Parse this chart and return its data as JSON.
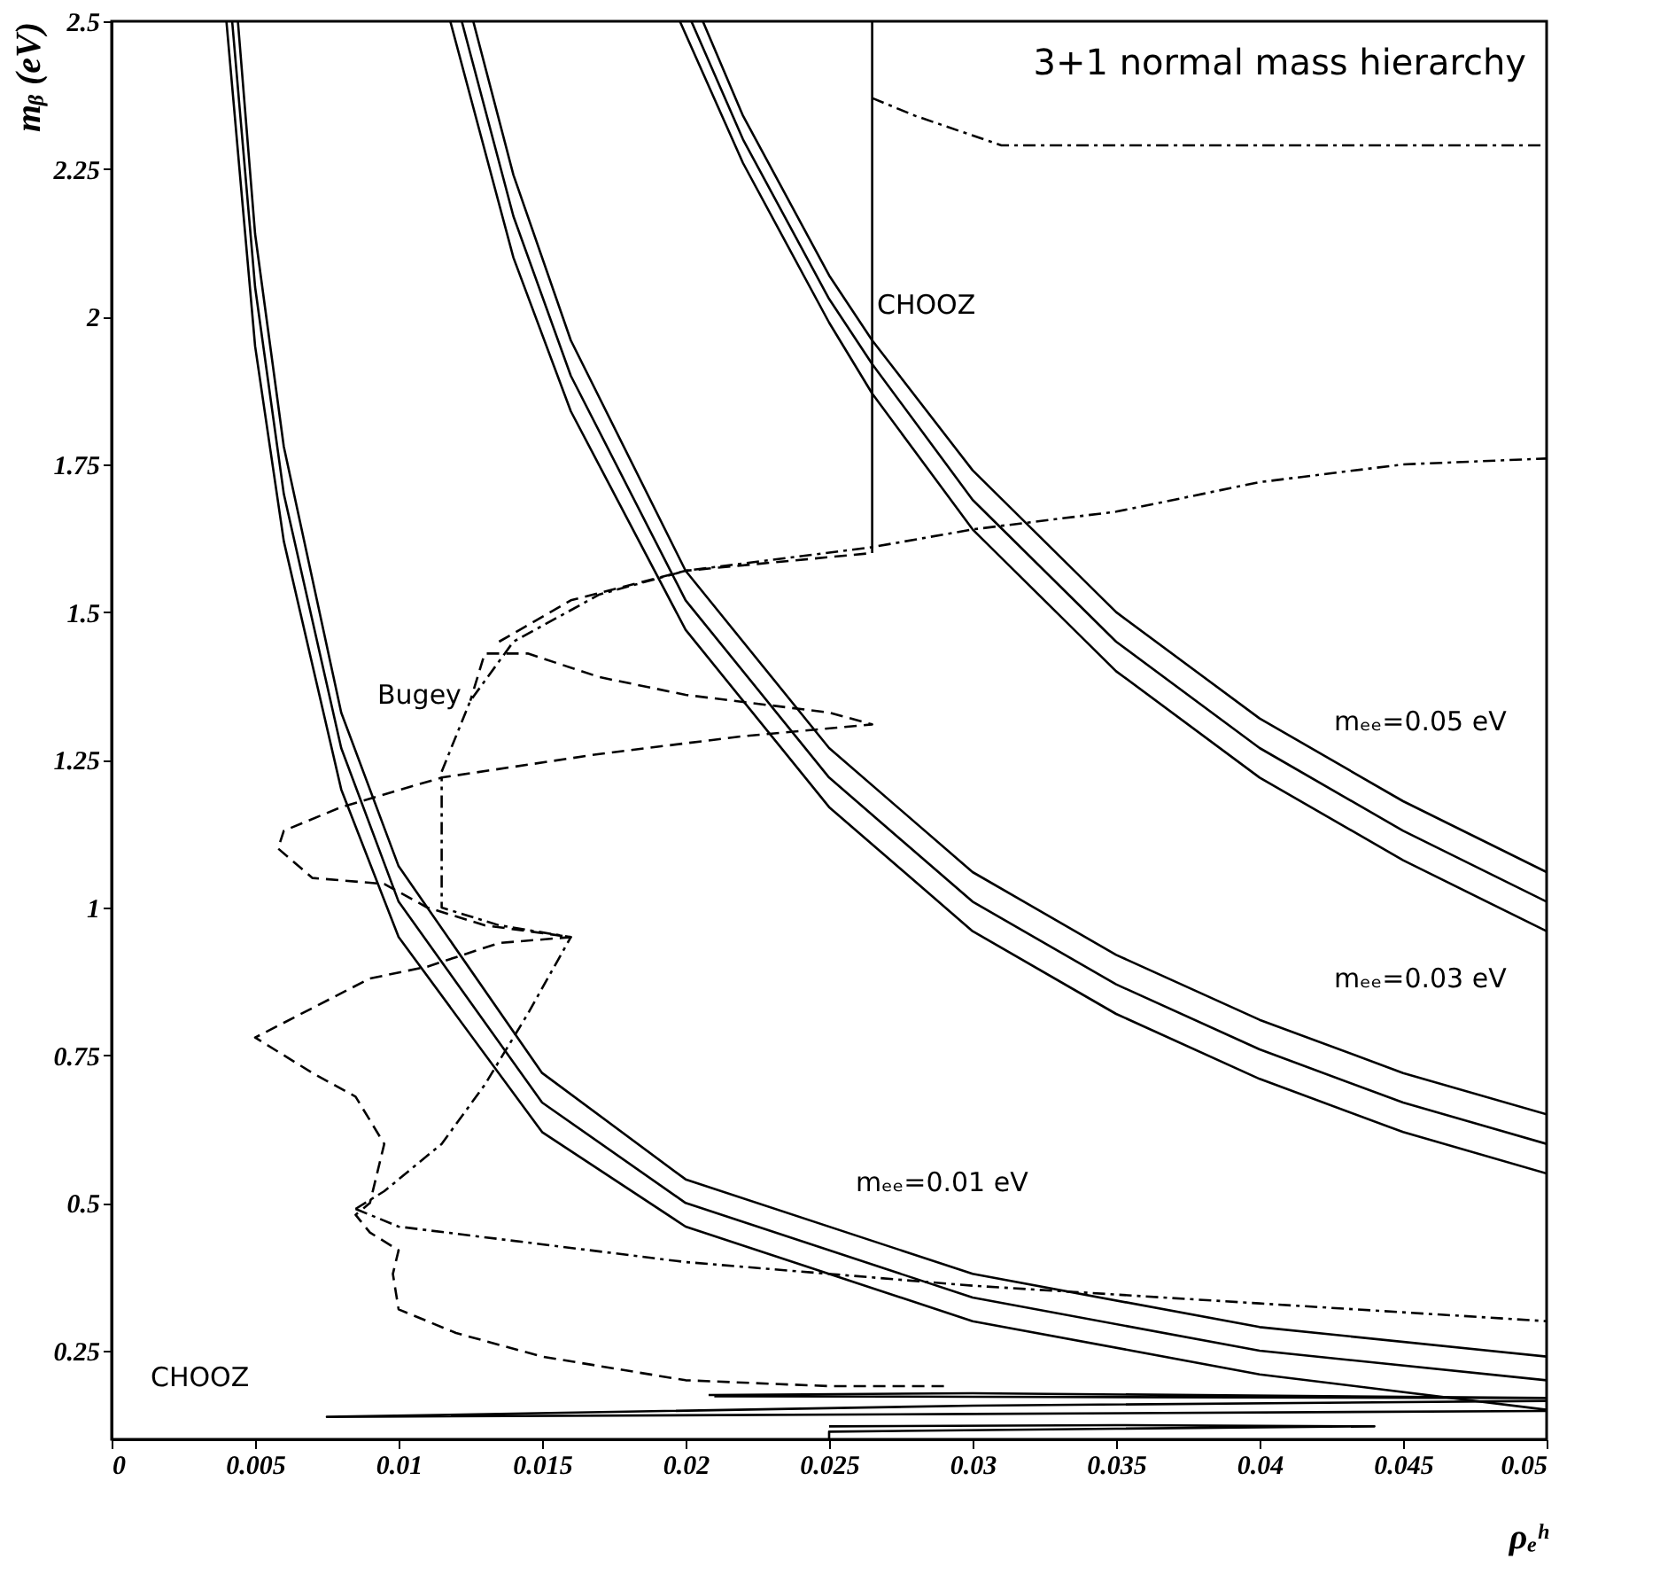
{
  "chart_data": {
    "type": "line",
    "title": "3+1 normal mass hierarchy",
    "xlabel": "ρₑʰ",
    "ylabel": "mᵦ (eV)",
    "xlim": [
      0,
      0.05
    ],
    "ylim": [
      0.1,
      2.5
    ],
    "xticks": [
      0,
      0.005,
      0.01,
      0.015,
      0.02,
      0.025,
      0.03,
      0.035,
      0.04,
      0.045,
      0.05
    ],
    "yticks": [
      0.25,
      0.5,
      0.75,
      1,
      1.25,
      1.5,
      1.75,
      2,
      2.25,
      2.5
    ],
    "grid": false,
    "legend": false,
    "series": [
      {
        "color": "#000000",
        "line_style": "solid",
        "x": [
          0.004,
          0.005,
          0.006,
          0.008,
          0.01,
          0.015,
          0.02,
          0.03,
          0.04,
          0.05
        ],
        "values": [
          2.5,
          1.95,
          1.62,
          1.2,
          0.95,
          0.62,
          0.46,
          0.3,
          0.21,
          0.15
        ]
      },
      {
        "color": "#000000",
        "line_style": "solid",
        "x": [
          0.0042,
          0.005,
          0.006,
          0.008,
          0.01,
          0.015,
          0.02,
          0.03,
          0.04,
          0.05
        ],
        "values": [
          2.5,
          2.05,
          1.7,
          1.27,
          1.01,
          0.67,
          0.5,
          0.34,
          0.25,
          0.2
        ]
      },
      {
        "color": "#000000",
        "line_style": "solid",
        "x": [
          0.0044,
          0.005,
          0.006,
          0.008,
          0.01,
          0.015,
          0.02,
          0.03,
          0.04,
          0.05
        ],
        "values": [
          2.5,
          2.14,
          1.78,
          1.33,
          1.07,
          0.72,
          0.54,
          0.38,
          0.29,
          0.24
        ]
      },
      {
        "color": "#000000",
        "line_style": "solid",
        "x": [
          0.0118,
          0.014,
          0.016,
          0.02,
          0.025,
          0.03,
          0.035,
          0.04,
          0.045,
          0.05
        ],
        "values": [
          2.5,
          2.1,
          1.84,
          1.47,
          1.17,
          0.96,
          0.82,
          0.71,
          0.62,
          0.55
        ]
      },
      {
        "color": "#000000",
        "line_style": "solid",
        "x": [
          0.0122,
          0.014,
          0.016,
          0.02,
          0.025,
          0.03,
          0.035,
          0.04,
          0.045,
          0.05
        ],
        "values": [
          2.5,
          2.17,
          1.9,
          1.52,
          1.22,
          1.01,
          0.87,
          0.76,
          0.67,
          0.6
        ]
      },
      {
        "color": "#000000",
        "line_style": "solid",
        "x": [
          0.0126,
          0.014,
          0.016,
          0.02,
          0.025,
          0.03,
          0.035,
          0.04,
          0.045,
          0.05
        ],
        "values": [
          2.5,
          2.24,
          1.96,
          1.57,
          1.27,
          1.06,
          0.92,
          0.81,
          0.72,
          0.65
        ]
      },
      {
        "color": "#000000",
        "line_style": "solid",
        "x": [
          0.0198,
          0.022,
          0.025,
          0.0265,
          0.03,
          0.035,
          0.04,
          0.045,
          0.05
        ],
        "values": [
          2.5,
          2.26,
          1.99,
          1.87,
          1.64,
          1.4,
          1.22,
          1.08,
          0.96
        ]
      },
      {
        "color": "#000000",
        "line_style": "solid",
        "x": [
          0.0202,
          0.022,
          0.025,
          0.0265,
          0.03,
          0.035,
          0.04,
          0.045,
          0.05
        ],
        "values": [
          2.5,
          2.3,
          2.03,
          1.92,
          1.69,
          1.45,
          1.27,
          1.13,
          1.01
        ]
      },
      {
        "color": "#000000",
        "line_style": "solid",
        "x": [
          0.0206,
          0.022,
          0.025,
          0.0265,
          0.03,
          0.035,
          0.04,
          0.045,
          0.05
        ],
        "values": [
          2.5,
          2.34,
          2.07,
          1.96,
          1.74,
          1.5,
          1.32,
          1.18,
          1.06
        ]
      },
      {
        "color": "#000000",
        "line_style": "solid",
        "x": [
          0.0265,
          0.0265
        ],
        "values": [
          1.6,
          2.5
        ]
      },
      {
        "color": "#000000",
        "line_style": "dotted",
        "x": [
          0.0265,
          0.028,
          0.031,
          0.035,
          0.04,
          0.05
        ],
        "values": [
          2.37,
          2.34,
          2.29,
          2.29,
          2.29,
          2.29
        ]
      },
      {
        "color": "#000000",
        "line_style": "dotted",
        "x": [
          0.0115,
          0.0125,
          0.014,
          0.017,
          0.02,
          0.0265,
          0.03,
          0.035,
          0.04,
          0.045,
          0.05
        ],
        "values": [
          1.23,
          1.35,
          1.45,
          1.53,
          1.57,
          1.61,
          1.64,
          1.67,
          1.72,
          1.75,
          1.76
        ]
      },
      {
        "color": "#000000",
        "line_style": "dotted",
        "x": [
          0.0085,
          0.01,
          0.015,
          0.02,
          0.03,
          0.04,
          0.05
        ],
        "values": [
          0.49,
          0.46,
          0.43,
          0.4,
          0.36,
          0.33,
          0.3
        ]
      },
      {
        "color": "#000000",
        "line_style": "dotted",
        "x": [
          0.0085,
          0.0095,
          0.0115,
          0.013,
          0.0145,
          0.016,
          0.0135,
          0.0115,
          0.0115,
          0.0115
        ],
        "values": [
          0.49,
          0.52,
          0.6,
          0.7,
          0.82,
          0.95,
          0.97,
          1.0,
          1.1,
          1.22
        ]
      },
      {
        "color": "#000000",
        "line_style": "dashed",
        "x": [
          0.029,
          0.025,
          0.02,
          0.015,
          0.012,
          0.01,
          0.0098,
          0.01,
          0.009,
          0.0085,
          0.009,
          0.0095,
          0.0085,
          0.007,
          0.005,
          0.007,
          0.009,
          0.011,
          0.0135,
          0.016,
          0.013,
          0.011,
          0.0095,
          0.007,
          0.0058,
          0.006,
          0.008,
          0.0115,
          0.017,
          0.022,
          0.0265,
          0.025,
          0.02,
          0.017,
          0.0145,
          0.013,
          0.0125
        ],
        "values": [
          0.19,
          0.19,
          0.2,
          0.24,
          0.28,
          0.32,
          0.38,
          0.42,
          0.45,
          0.48,
          0.5,
          0.6,
          0.68,
          0.72,
          0.78,
          0.83,
          0.88,
          0.9,
          0.94,
          0.95,
          0.97,
          1.0,
          1.04,
          1.05,
          1.1,
          1.13,
          1.17,
          1.22,
          1.26,
          1.29,
          1.31,
          1.33,
          1.36,
          1.39,
          1.43,
          1.43,
          1.35
        ]
      },
      {
        "color": "#000000",
        "line_style": "dashed",
        "x": [
          0.0135,
          0.016,
          0.02,
          0.0265
        ],
        "values": [
          1.45,
          1.52,
          1.57,
          1.6
        ]
      },
      {
        "color": "#000000",
        "line_style": "solid",
        "x": [
          0.05,
          0.03,
          0.0075,
          0.03,
          0.05
        ],
        "values": [
          0.165,
          0.157,
          0.138,
          0.143,
          0.148
        ]
      },
      {
        "color": "#000000",
        "line_style": "solid",
        "x": [
          0.0208,
          0.03,
          0.05,
          0.03,
          0.021
        ],
        "values": [
          0.175,
          0.178,
          0.17,
          0.172,
          0.173
        ]
      },
      {
        "color": "#000000",
        "line_style": "solid",
        "x": [
          0.025,
          0.025,
          0.035,
          0.044,
          0.035,
          0.025
        ],
        "values": [
          0.1,
          0.113,
          0.118,
          0.122,
          0.124,
          0.122
        ]
      }
    ],
    "annotations": [
      "CHOOZ",
      "Bugey",
      "mₑₑ=0.05 eV",
      "mₑₑ=0.03 eV",
      "mₑₑ=0.01 eV",
      "CHOOZ"
    ]
  }
}
